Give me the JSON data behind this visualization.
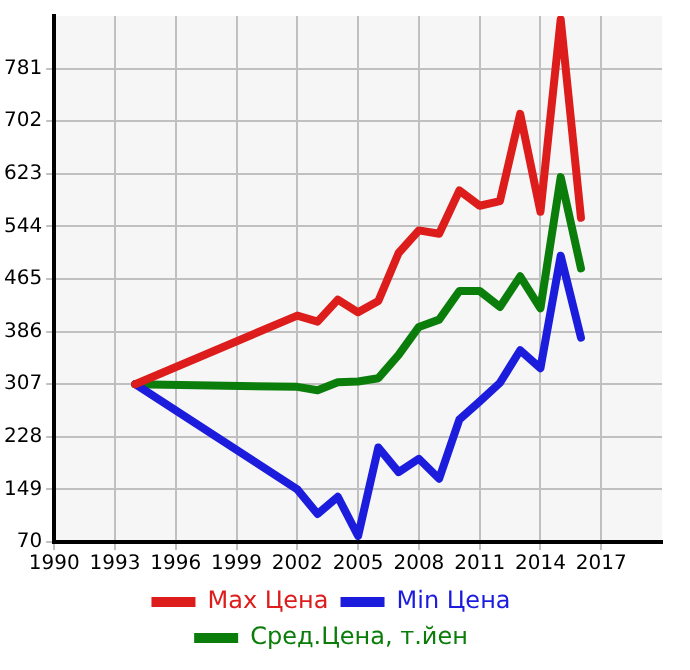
{
  "chart_data": {
    "type": "line",
    "x": [
      1994,
      2002,
      2003,
      2004,
      2005,
      2006,
      2007,
      2008,
      2009,
      2010,
      2011,
      2012,
      2013,
      2014,
      2015,
      2016
    ],
    "series": [
      {
        "name": "Max Цена",
        "color": "#dd1c1c",
        "values": [
          307,
          410,
          401,
          434,
          415,
          432,
          504,
          538,
          533,
          598,
          575,
          582,
          713,
          566,
          855,
          557
        ]
      },
      {
        "name": "Min Цена",
        "color": "#1c1cdd",
        "values": [
          307,
          149,
          112,
          138,
          79,
          212,
          175,
          195,
          165,
          254,
          281,
          309,
          358,
          331,
          500,
          377
        ]
      },
      {
        "name": "Сред.Цена, т.йен",
        "color": "#0a7d0a",
        "values": [
          307,
          303,
          298,
          310,
          311,
          316,
          351,
          393,
          404,
          447,
          447,
          423,
          469,
          421,
          618,
          481
        ]
      }
    ],
    "xlim": [
      1990,
      2020
    ],
    "xticks": [
      1990,
      1993,
      1996,
      1999,
      2002,
      2005,
      2008,
      2011,
      2014,
      2017
    ],
    "ylim": [
      70,
      860
    ],
    "yticks": [
      70,
      149,
      228,
      307,
      386,
      465,
      544,
      623,
      702,
      781
    ],
    "grid": true,
    "legend": "bottom",
    "marker": "none",
    "line_style": "solid"
  }
}
